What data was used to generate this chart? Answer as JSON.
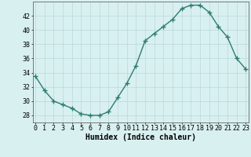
{
  "x": [
    0,
    1,
    2,
    3,
    4,
    5,
    6,
    7,
    8,
    9,
    10,
    11,
    12,
    13,
    14,
    15,
    16,
    17,
    18,
    19,
    20,
    21,
    22,
    23
  ],
  "y": [
    33.5,
    31.5,
    30.0,
    29.5,
    29.0,
    28.2,
    28.0,
    28.0,
    28.5,
    30.5,
    32.5,
    35.0,
    38.5,
    39.5,
    40.5,
    41.5,
    43.0,
    43.5,
    43.5,
    42.5,
    40.5,
    39.0,
    36.0,
    34.5
  ],
  "line_color": "#2d7d6e",
  "marker": "+",
  "markersize": 4,
  "linewidth": 1.0,
  "markeredgewidth": 1.0,
  "background_color": "#d9f0f0",
  "grid_color": "#b8d8d8",
  "xlabel": "Humidex (Indice chaleur)",
  "xlabel_fontsize": 7,
  "tick_fontsize": 6,
  "ylim": [
    27,
    44
  ],
  "yticks": [
    28,
    30,
    32,
    34,
    36,
    38,
    40,
    42
  ],
  "xticks": [
    0,
    1,
    2,
    3,
    4,
    5,
    6,
    7,
    8,
    9,
    10,
    11,
    12,
    13,
    14,
    15,
    16,
    17,
    18,
    19,
    20,
    21,
    22,
    23
  ],
  "xlim": [
    -0.3,
    23.3
  ],
  "spine_color": "#666666"
}
